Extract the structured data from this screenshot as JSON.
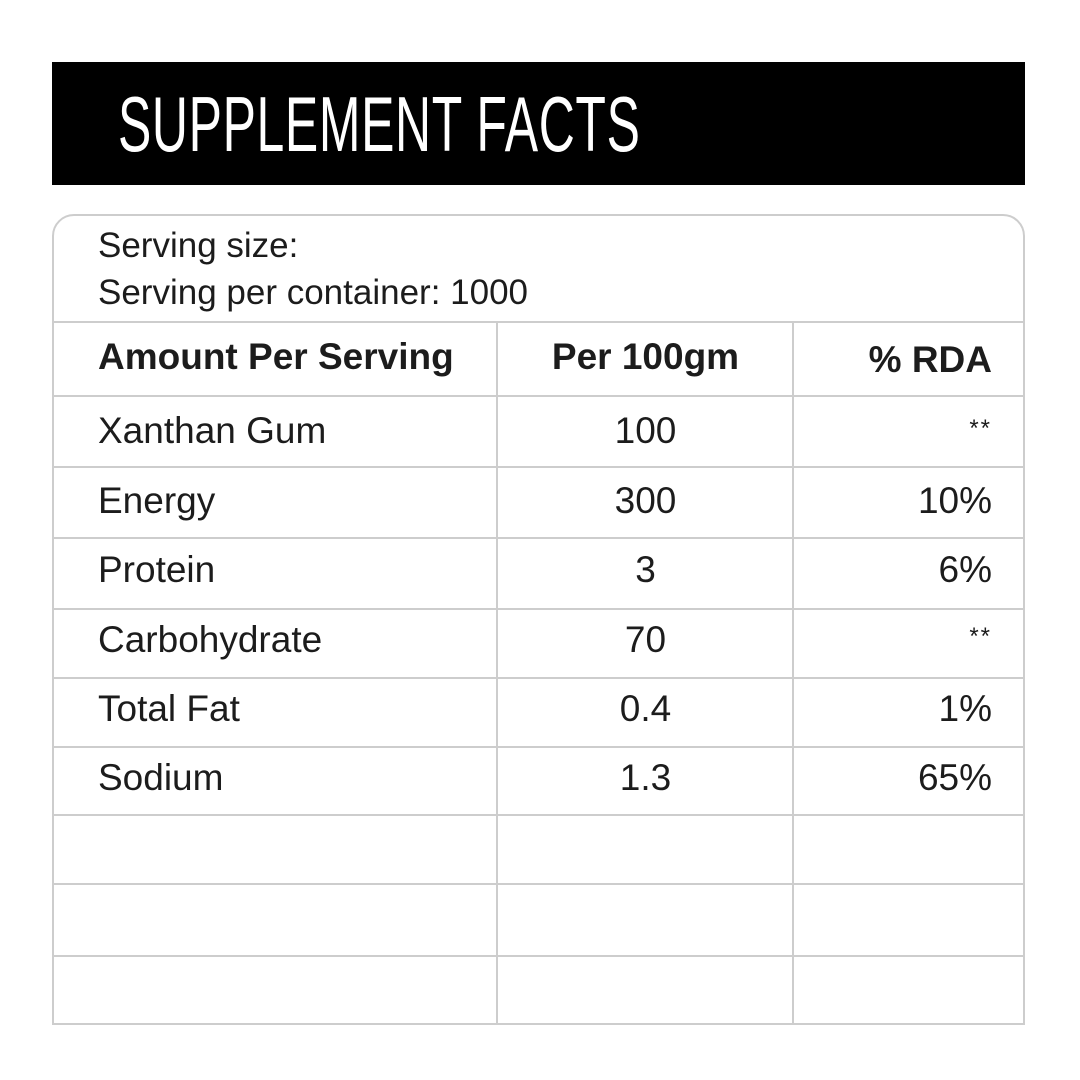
{
  "title": "SUPPLEMENT FACTS",
  "serving": {
    "size_label": "Serving size:",
    "per_container_label": "Serving per container: 1000"
  },
  "table": {
    "headers": [
      "Amount Per Serving",
      "Per 100gm",
      "% RDA"
    ],
    "rows": [
      [
        "Xanthan Gum",
        "100",
        "**"
      ],
      [
        "Energy",
        "300",
        "10%"
      ],
      [
        "Protein",
        "3",
        "6%"
      ],
      [
        "Carbohydrate",
        "70",
        "**"
      ],
      [
        "Total Fat",
        "0.4",
        "1%"
      ],
      [
        "Sodium",
        "1.3",
        "65%"
      ]
    ],
    "empty_rows": 3
  },
  "colors": {
    "title_bar": "#000000",
    "title_text": "#ffffff",
    "grid": "#cdcdcd",
    "text": "#1c1c1c"
  }
}
